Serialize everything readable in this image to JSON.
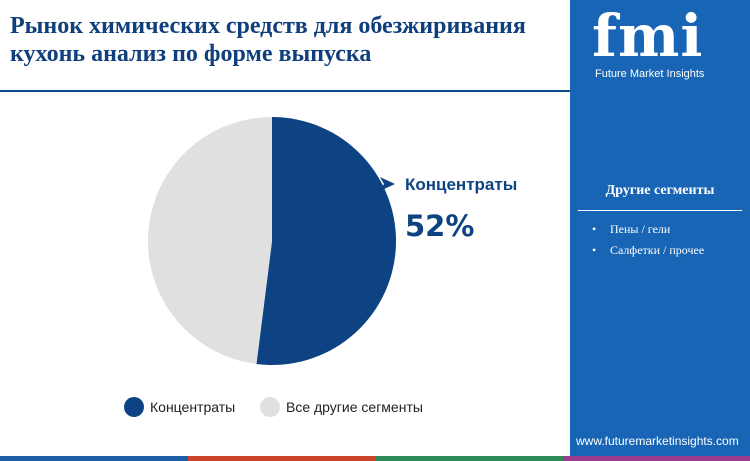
{
  "title": "Рынок химических средств для обезжиривания кухонь анализ по форме выпуска",
  "brand": {
    "logo": "fmi",
    "name": "Future Market Insights",
    "url": "www.futuremarketinsights.com"
  },
  "sidebar": {
    "heading": "Другие сегменты",
    "items": [
      {
        "label": "Пены / гели"
      },
      {
        "label": "Салфетки / прочее"
      }
    ]
  },
  "chart_data": {
    "type": "pie",
    "slices": [
      {
        "label": "Концентраты",
        "value": 52,
        "color": "#0d4382"
      },
      {
        "label": "Все другие сегменты",
        "value": 48,
        "color": "#e0e0e0"
      }
    ],
    "callout": {
      "label": "Концентраты",
      "value": "52%"
    },
    "legend": [
      "Концентраты",
      "Все другие сегменты"
    ],
    "legend_position": "bottom"
  },
  "colors": {
    "accent": "#0d4382",
    "sidebar": "#1865b5",
    "other": "#e0e0e0",
    "bottom_bar": [
      "#1c5fa8",
      "#c9442a",
      "#2e8b57",
      "#9b3e8f"
    ]
  }
}
